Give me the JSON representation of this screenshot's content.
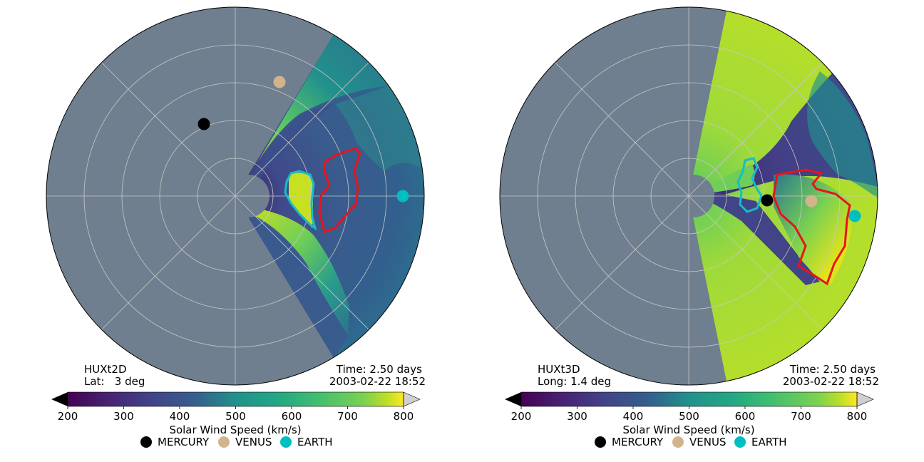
{
  "colors": {
    "gray_mask": "#6f7f8f",
    "red_contour": "#e8141a",
    "cyan_contour": "#17bcc8",
    "mercury": "#000000",
    "venus": "#d2b48c",
    "earth": "#00bfc0",
    "grid": "#c8c8c8"
  },
  "chart_data": [
    {
      "type": "polar-heatmap",
      "model_label": "HUXt2D",
      "coord_label": "Lat:   3 deg",
      "time_label": "Time: 2.50 days",
      "date_label": "2003-02-22 18:52",
      "colorbar": {
        "label": "Solar Wind Speed (km/s)",
        "ticks": [
          "200",
          "300",
          "400",
          "500",
          "600",
          "700",
          "800"
        ],
        "range": [
          200,
          800
        ],
        "colormap": "viridis",
        "extend_low": "black",
        "extend_high": "lightgray"
      },
      "legend": [
        {
          "name": "MERCURY",
          "color": "#000000"
        },
        {
          "name": "VENUS",
          "color": "#d2b48c"
        },
        {
          "name": "EARTH",
          "color": "#00bfc0"
        }
      ],
      "model_sector_deg": [
        -60,
        60
      ],
      "rings": 5,
      "planets": [
        {
          "name": "MERCURY",
          "r": 0.39,
          "theta_deg": 127
        },
        {
          "name": "VENUS",
          "r": 0.62,
          "theta_deg": 75
        },
        {
          "name": "EARTH",
          "r": 0.89,
          "theta_deg": 0
        }
      ]
    },
    {
      "type": "polar-heatmap",
      "model_label": "HUXt3D",
      "coord_label": "Long: 1.4 deg",
      "time_label": "Time: 2.50 days",
      "date_label": "2003-02-22 18:52",
      "colorbar": {
        "label": "Solar Wind Speed (km/s)",
        "ticks": [
          "200",
          "300",
          "400",
          "500",
          "600",
          "700",
          "800"
        ],
        "range": [
          200,
          800
        ],
        "colormap": "viridis",
        "extend_low": "black",
        "extend_high": "lightgray"
      },
      "legend": [
        {
          "name": "MERCURY",
          "color": "#000000"
        },
        {
          "name": "VENUS",
          "color": "#d2b48c"
        },
        {
          "name": "EARTH",
          "color": "#00bfc0"
        }
      ],
      "model_sector_deg": [
        -72,
        72
      ],
      "rings": 5,
      "planets": [
        {
          "name": "MERCURY",
          "r": 0.42,
          "theta_deg": -3
        },
        {
          "name": "VENUS",
          "r": 0.65,
          "theta_deg": -3
        },
        {
          "name": "EARTH",
          "r": 0.88,
          "theta_deg": -6
        }
      ]
    }
  ]
}
